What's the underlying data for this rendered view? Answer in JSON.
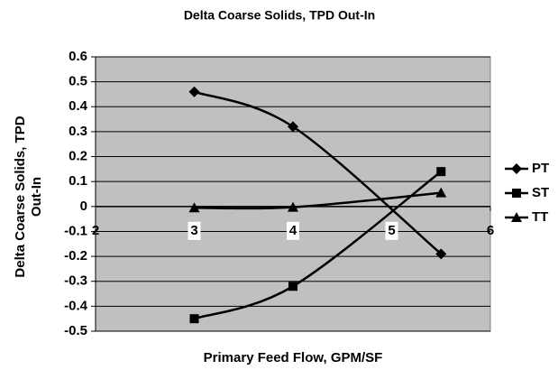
{
  "chart_data": {
    "type": "line",
    "title": "Delta Coarse Solids, TPD Out-In",
    "x_label": "Primary Feed Flow, GPM/SF",
    "y_label": "Delta Coarse Solids, TPD Out-In",
    "x": [
      3,
      4,
      5.5
    ],
    "series": [
      {
        "name": "PT",
        "color": "#000000",
        "marker": "diamond",
        "values": [
          0.46,
          0.32,
          -0.19
        ]
      },
      {
        "name": "ST",
        "color": "#000000",
        "marker": "square",
        "values": [
          -0.45,
          -0.32,
          0.14
        ]
      },
      {
        "name": "TT",
        "color": "#000000",
        "marker": "triangle",
        "values": [
          -0.005,
          -0.003,
          0.055
        ]
      }
    ],
    "xlim": [
      2,
      6
    ],
    "xticks": [
      2,
      3,
      4,
      5,
      6
    ],
    "ylim": [
      -0.5,
      0.6
    ],
    "yticks": [
      0.6,
      0.5,
      0.4,
      0.3,
      0.2,
      0.1,
      0,
      -0.1,
      -0.2,
      -0.3,
      -0.4,
      -0.5
    ],
    "grid": true,
    "legend": "right",
    "plot_background": "#c0c0c0"
  }
}
